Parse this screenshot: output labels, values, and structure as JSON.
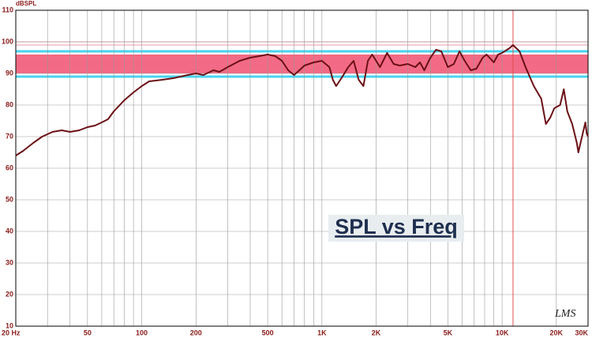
{
  "chart_data": {
    "type": "line",
    "y_label": "dBSPL",
    "annotation": "SPL vs Freq",
    "logo": "LMS",
    "xscale": "log",
    "xlim": [
      20,
      30000
    ],
    "ylim": [
      10,
      110
    ],
    "xticks": [
      {
        "value": 20,
        "label": "20 Hz"
      },
      50,
      100,
      200,
      500,
      {
        "value": 1000,
        "label": "1K"
      },
      {
        "value": 2000,
        "label": "2K"
      },
      {
        "value": 5000,
        "label": "5K"
      },
      {
        "value": 10000,
        "label": "10K"
      },
      {
        "value": 20000,
        "label": "20K"
      },
      {
        "value": 30000,
        "label": "30K"
      }
    ],
    "xgrid": [
      20,
      30,
      40,
      50,
      60,
      70,
      80,
      90,
      100,
      200,
      300,
      400,
      500,
      600,
      700,
      800,
      900,
      1000,
      2000,
      3000,
      4000,
      5000,
      6000,
      7000,
      8000,
      9000,
      10000,
      20000
    ],
    "yticks": [
      10,
      20,
      30,
      40,
      50,
      60,
      70,
      80,
      90,
      100,
      110
    ],
    "grid": true,
    "bands": [
      {
        "from": 90,
        "to": 96,
        "color": "#f26a85"
      }
    ],
    "hlines": [
      {
        "value": 89,
        "color": "#49d3ee"
      },
      {
        "value": 97,
        "color": "#49d3ee"
      },
      {
        "value": 99,
        "color": "#e89aa5"
      },
      {
        "value": 100,
        "color": "#e89aa5"
      }
    ],
    "vlines": [
      {
        "value": 11500,
        "color": "#e05050"
      }
    ],
    "series": [
      {
        "name": "SPL",
        "color": "#6b1015",
        "x": [
          20,
          22,
          25,
          28,
          32,
          36,
          40,
          45,
          50,
          55,
          60,
          65,
          70,
          80,
          90,
          100,
          110,
          130,
          150,
          180,
          200,
          220,
          250,
          270,
          300,
          350,
          400,
          450,
          500,
          550,
          600,
          650,
          700,
          750,
          800,
          900,
          1000,
          1100,
          1150,
          1200,
          1300,
          1400,
          1500,
          1600,
          1700,
          1800,
          1900,
          2000,
          2100,
          2300,
          2500,
          2700,
          3000,
          3300,
          3500,
          3700,
          4000,
          4300,
          4600,
          5000,
          5400,
          5800,
          6200,
          6700,
          7200,
          7800,
          8200,
          9000,
          9500,
          10000,
          11000,
          11500,
          12500,
          13500,
          15000,
          16500,
          17500,
          18500,
          19500,
          21000,
          22000,
          23000,
          24500,
          26000,
          26500,
          27500,
          29000,
          29500,
          30000
        ],
        "values": [
          64,
          65.5,
          68,
          70,
          71.5,
          72,
          71.5,
          72,
          73,
          73.5,
          74.5,
          75.5,
          78,
          81.5,
          84,
          86,
          87.5,
          88,
          88.5,
          89.5,
          90,
          89.5,
          91,
          90.5,
          92,
          94,
          95,
          95.5,
          96,
          95.5,
          94,
          91,
          89.5,
          91,
          92.5,
          93.5,
          94,
          92,
          88,
          86,
          89,
          92,
          94,
          88,
          86,
          94,
          96,
          94,
          92,
          96.5,
          93,
          92.5,
          93,
          92,
          93.5,
          91,
          95,
          97.5,
          97,
          92,
          93,
          97,
          94,
          91,
          91.5,
          95,
          96,
          93.5,
          96,
          96.5,
          98,
          99,
          97,
          92,
          86,
          82,
          74,
          76,
          79,
          80,
          85,
          78,
          74,
          68,
          65,
          69,
          74.5,
          71,
          70
        ]
      }
    ]
  }
}
